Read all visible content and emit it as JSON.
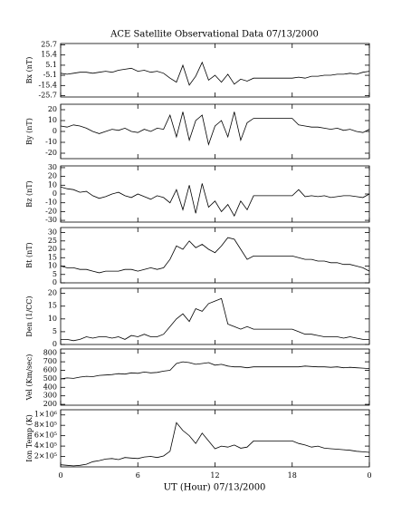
{
  "chart_data": {
    "type": "line",
    "title": "ACE Satellite Observational Data   07/13/2000",
    "xlabel": "UT (Hour)   07/13/2000",
    "xlim": [
      0,
      24
    ],
    "xticks": [
      0,
      6,
      12,
      18,
      {
        "value": 24,
        "label": "0"
      }
    ],
    "color": "#000000",
    "x": [
      0,
      0.5,
      1,
      1.5,
      2,
      2.5,
      3,
      3.5,
      4,
      4.5,
      5,
      5.5,
      6,
      6.5,
      7,
      7.5,
      8,
      8.5,
      9,
      9.5,
      10,
      10.5,
      11,
      11.5,
      12,
      12.5,
      13,
      13.5,
      14,
      14.5,
      15,
      15.5,
      16,
      16.5,
      17,
      17.5,
      18,
      18.5,
      19,
      19.5,
      20,
      20.5,
      21,
      21.5,
      22,
      22.5,
      23,
      23.5,
      24
    ],
    "panels": [
      {
        "ylabel": "Bx (nT)",
        "ylim": [
          -27,
          27
        ],
        "yticks": [
          -25.7,
          -15.4,
          -5.1,
          5.1,
          15.4,
          25.7
        ],
        "values": [
          -3,
          -4,
          -3,
          -2,
          -2,
          -3,
          -2,
          -1,
          -2,
          0,
          1,
          2,
          -1,
          0,
          -2,
          -1,
          -3,
          -8,
          -12,
          5,
          -15,
          -6,
          8,
          -10,
          -5,
          -12,
          -4,
          -14,
          -9,
          -11,
          -8,
          -8,
          -8,
          -8,
          -8,
          -8,
          -8,
          -7,
          -8,
          -6,
          -6,
          -5,
          -5,
          -4,
          -4,
          -3,
          -4,
          -2,
          -1
        ]
      },
      {
        "ylabel": "By (nT)",
        "ylim": [
          -25,
          25
        ],
        "yticks": [
          -20,
          -10,
          0,
          10,
          20
        ],
        "values": [
          5,
          4,
          6,
          5,
          3,
          0,
          -2,
          0,
          2,
          1,
          3,
          0,
          -1,
          2,
          0,
          3,
          2,
          15,
          -5,
          18,
          -8,
          10,
          15,
          -12,
          5,
          10,
          -5,
          18,
          -8,
          8,
          12,
          12,
          12,
          12,
          12,
          12,
          12,
          6,
          5,
          4,
          4,
          3,
          2,
          3,
          1,
          2,
          0,
          -1,
          2
        ]
      },
      {
        "ylabel": "Bz (nT)",
        "ylim": [
          -32,
          32
        ],
        "yticks": [
          -30,
          -20,
          -10,
          0,
          10,
          20,
          30
        ],
        "values": [
          8,
          6,
          5,
          2,
          3,
          -2,
          -5,
          -3,
          0,
          2,
          -2,
          -4,
          0,
          -3,
          -6,
          -2,
          -4,
          -10,
          5,
          -18,
          10,
          -22,
          12,
          -15,
          -8,
          -20,
          -12,
          -25,
          -8,
          -18,
          -2,
          -2,
          -2,
          -2,
          -2,
          -2,
          -2,
          5,
          -3,
          -2,
          -3,
          -2,
          -4,
          -3,
          -2,
          -2,
          -3,
          -4,
          0
        ]
      },
      {
        "ylabel": "Bt (nT)",
        "ylim": [
          0,
          33
        ],
        "yticks": [
          0,
          5,
          10,
          15,
          20,
          25,
          30
        ],
        "values": [
          10,
          9,
          9,
          8,
          8,
          7,
          6,
          7,
          7,
          7,
          8,
          8,
          7,
          8,
          9,
          8,
          9,
          14,
          22,
          20,
          25,
          21,
          23,
          20,
          18,
          22,
          27,
          26,
          20,
          14,
          16,
          16,
          16,
          16,
          16,
          16,
          16,
          15,
          14,
          14,
          13,
          13,
          12,
          12,
          11,
          11,
          10,
          9,
          7
        ]
      },
      {
        "ylabel": "Den (1/CC)",
        "ylim": [
          0,
          22
        ],
        "yticks": [
          0,
          5,
          10,
          15,
          20
        ],
        "values": [
          2,
          2,
          1.5,
          2,
          3,
          2.5,
          3,
          3,
          2.5,
          3,
          2,
          3.5,
          3,
          4,
          3,
          3,
          4,
          7,
          10,
          12,
          9,
          14,
          13,
          16,
          17,
          18,
          8,
          7,
          6,
          7,
          6,
          6,
          6,
          6,
          6,
          6,
          6,
          5,
          4,
          4,
          3.5,
          3,
          3,
          3,
          2.5,
          3,
          2.5,
          2,
          2
        ]
      },
      {
        "ylabel": "Vel (Km/sec)",
        "ylim": [
          190,
          850
        ],
        "yticks": [
          200,
          300,
          400,
          500,
          600,
          700,
          800
        ],
        "values": [
          500,
          510,
          505,
          520,
          530,
          525,
          540,
          545,
          550,
          560,
          555,
          570,
          565,
          580,
          570,
          575,
          590,
          600,
          680,
          700,
          690,
          670,
          680,
          690,
          660,
          670,
          650,
          640,
          640,
          630,
          640,
          640,
          640,
          640,
          640,
          640,
          640,
          640,
          650,
          645,
          640,
          640,
          635,
          640,
          630,
          635,
          630,
          625,
          620
        ]
      },
      {
        "ylabel": "Ion Temp (K)",
        "ylim": [
          0,
          1100000
        ],
        "yticks": [
          {
            "value": 200000,
            "label": "2×10⁵"
          },
          {
            "value": 400000,
            "label": "4×10⁵"
          },
          {
            "value": 600000,
            "label": "6×10⁵"
          },
          {
            "value": 800000,
            "label": "8×10⁵"
          },
          {
            "value": 1000000,
            "label": "1×10⁶"
          }
        ],
        "values": [
          40000,
          30000,
          20000,
          30000,
          50000,
          100000,
          120000,
          150000,
          160000,
          140000,
          180000,
          170000,
          160000,
          190000,
          200000,
          180000,
          210000,
          300000,
          850000,
          700000,
          600000,
          450000,
          650000,
          500000,
          350000,
          400000,
          380000,
          420000,
          360000,
          380000,
          500000,
          500000,
          500000,
          500000,
          500000,
          500000,
          500000,
          450000,
          420000,
          380000,
          400000,
          360000,
          350000,
          340000,
          330000,
          320000,
          300000,
          290000,
          280000
        ]
      }
    ]
  }
}
